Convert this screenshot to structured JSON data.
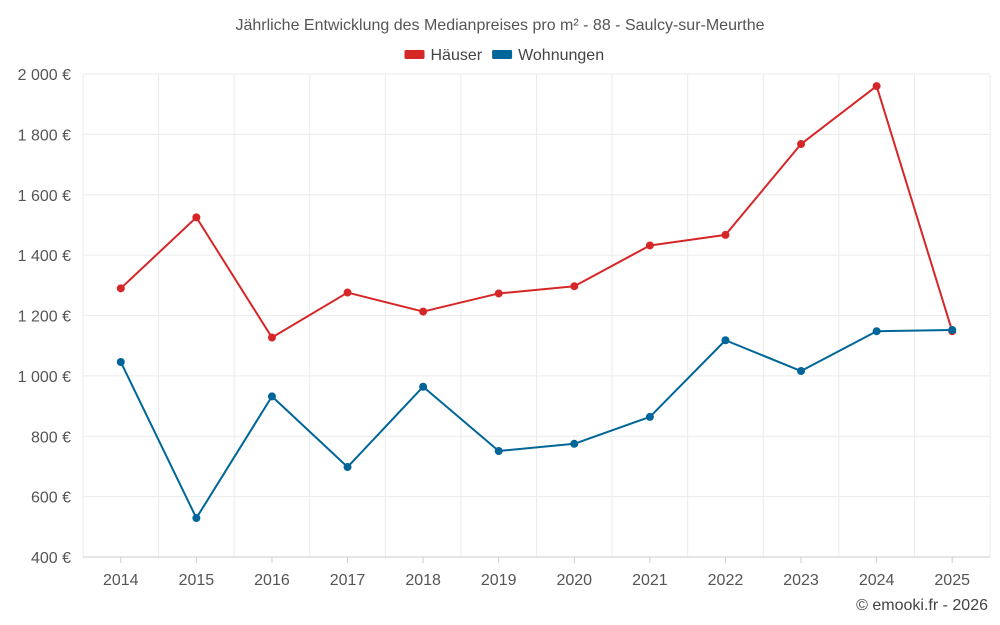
{
  "chart_data": {
    "type": "line",
    "title": "Jährliche Entwicklung des Medianpreises pro m² - 88 - Saulcy-sur-Meurthe",
    "categories": [
      "2014",
      "2015",
      "2016",
      "2017",
      "2018",
      "2019",
      "2020",
      "2021",
      "2022",
      "2023",
      "2024",
      "2025"
    ],
    "series": [
      {
        "name": "Häuser",
        "color": "#d62728",
        "values": [
          1290,
          1525,
          1127,
          1276,
          1213,
          1273,
          1297,
          1432,
          1467,
          1768,
          1960,
          1148
        ]
      },
      {
        "name": "Wohnungen",
        "color": "#006699",
        "values": [
          1046,
          529,
          932,
          698,
          964,
          751,
          775,
          864,
          1118,
          1016,
          1148,
          1152
        ]
      }
    ],
    "ylim": [
      400,
      2000
    ],
    "yticks": [
      400,
      600,
      800,
      1000,
      1200,
      1400,
      1600,
      1800,
      2000
    ],
    "ytick_labels": [
      "400 €",
      "600 €",
      "800 €",
      "1 000 €",
      "1 200 €",
      "1 400 €",
      "1 600 €",
      "1 800 €",
      "2 000 €"
    ],
    "xlabel": "",
    "ylabel": "",
    "grid": true,
    "legend_position": "top-center"
  },
  "credit": "© emooki.fr - 2026"
}
